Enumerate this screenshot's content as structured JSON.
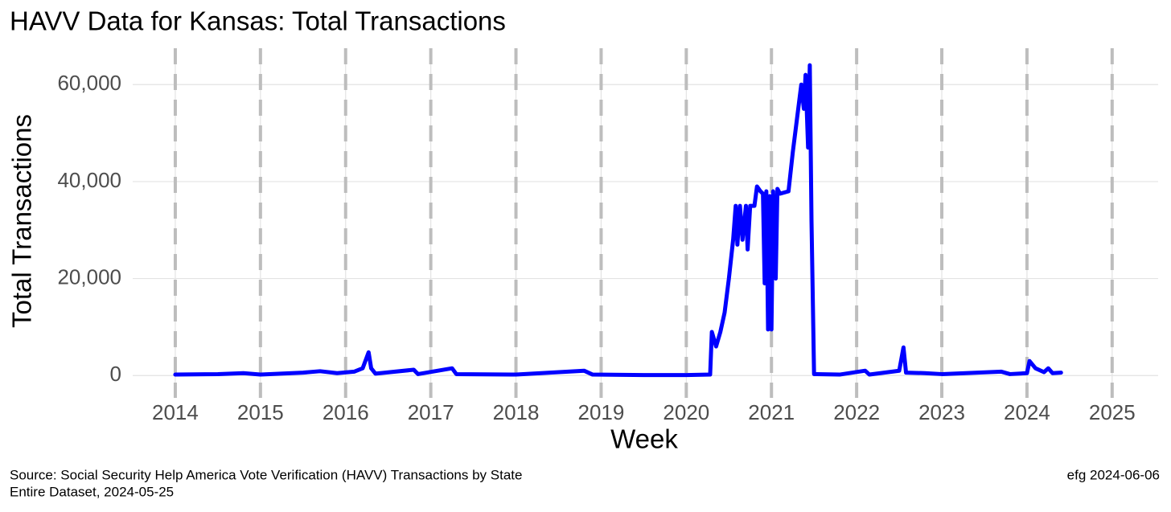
{
  "chart_data": {
    "type": "line",
    "title": "HAVV Data for Kansas:  Total Transactions",
    "x_label": "Week",
    "y_label": "Total Transactions",
    "caption_left": [
      "Source:  Social Security Help America Vote Verification (HAVV) Transactions by State",
      "Entire Dataset, 2024-05-25"
    ],
    "caption_right": "efg 2024-06-06",
    "xlim": [
      2013.5,
      2025.54
    ],
    "xticks": [
      2014,
      2015,
      2016,
      2017,
      2018,
      2019,
      2020,
      2021,
      2022,
      2023,
      2024,
      2025
    ],
    "ylim": [
      -4600,
      67500
    ],
    "yticks": [
      {
        "value": 0,
        "label": "0"
      },
      {
        "value": 20000,
        "label": "20,000"
      },
      {
        "value": 40000,
        "label": "40,000"
      },
      {
        "value": 60000,
        "label": "60,000"
      }
    ],
    "grid": true,
    "year_dashes": true,
    "x": [
      2014.0,
      2014.5,
      2014.8,
      2015.0,
      2015.5,
      2015.7,
      2015.9,
      2016.1,
      2016.2,
      2016.27,
      2016.3,
      2016.35,
      2016.8,
      2016.85,
      2017.25,
      2017.3,
      2018.0,
      2018.8,
      2018.9,
      2019.5,
      2020.0,
      2020.28,
      2020.3,
      2020.35,
      2020.4,
      2020.45,
      2020.5,
      2020.55,
      2020.58,
      2020.6,
      2020.63,
      2020.66,
      2020.7,
      2020.72,
      2020.75,
      2020.8,
      2020.83,
      2020.87,
      2020.9,
      2020.92,
      2020.94,
      2020.96,
      2020.98,
      2021.0,
      2021.02,
      2021.05,
      2021.07,
      2021.1,
      2021.2,
      2021.25,
      2021.3,
      2021.35,
      2021.38,
      2021.4,
      2021.43,
      2021.45,
      2021.47,
      2021.5,
      2021.8,
      2022.1,
      2022.15,
      2022.5,
      2022.55,
      2022.58,
      2022.8,
      2023.0,
      2023.7,
      2023.8,
      2024.0,
      2024.03,
      2024.1,
      2024.2,
      2024.25,
      2024.3,
      2024.4
    ],
    "series": [
      {
        "name": "Total Transactions",
        "color": "#0000ff",
        "values": [
          200,
          300,
          500,
          200,
          600,
          900,
          500,
          800,
          1500,
          4800,
          1500,
          400,
          1200,
          300,
          1500,
          300,
          200,
          1000,
          200,
          100,
          100,
          200,
          9000,
          6000,
          9000,
          13000,
          20000,
          28000,
          35000,
          27000,
          35000,
          28000,
          35000,
          26000,
          35000,
          35000,
          39000,
          38000,
          37500,
          19000,
          38000,
          9500,
          37000,
          9500,
          38000,
          20000,
          38500,
          37500,
          38000,
          46000,
          53000,
          60000,
          55000,
          62000,
          47000,
          64000,
          32000,
          300,
          200,
          1000,
          200,
          1000,
          5800,
          600,
          500,
          300,
          800,
          300,
          500,
          3000,
          1500,
          700,
          1500,
          500,
          600
        ]
      }
    ]
  }
}
